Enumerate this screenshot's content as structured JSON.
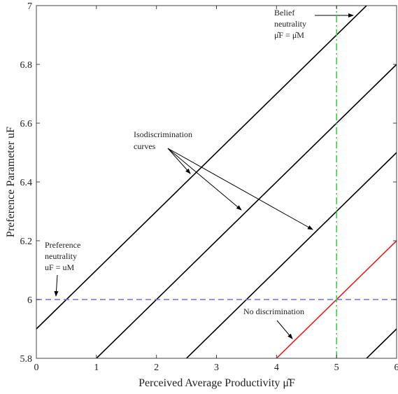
{
  "chart_data": {
    "type": "line",
    "xlabel": "Perceived Average Productivity μ̂F",
    "ylabel": "Preference Parameter uF",
    "xlim": [
      0,
      6
    ],
    "ylim": [
      5.8,
      7
    ],
    "xticks": [
      0,
      1,
      2,
      3,
      4,
      5,
      6
    ],
    "yticks": [
      5.8,
      6,
      6.2,
      6.4,
      6.6,
      6.8,
      7
    ],
    "grid": false,
    "series": [
      {
        "color": "#000000",
        "dash": "solid",
        "x": [
          0,
          5.5
        ],
        "values": [
          5.9,
          7
        ]
      },
      {
        "color": "#000000",
        "dash": "solid",
        "x": [
          1,
          6
        ],
        "values": [
          5.8,
          6.8
        ]
      },
      {
        "color": "#000000",
        "dash": "solid",
        "x": [
          2.5,
          6
        ],
        "values": [
          5.8,
          6.5
        ]
      },
      {
        "color": "#e8231f",
        "dash": "solid",
        "x": [
          4,
          6
        ],
        "values": [
          5.8,
          6.2
        ]
      },
      {
        "color": "#000000",
        "dash": "solid",
        "x": [
          5.5,
          6
        ],
        "values": [
          5.8,
          5.9
        ]
      },
      {
        "color": "#6f6ff5",
        "dash": "dashed",
        "x": [
          0,
          6
        ],
        "values": [
          6,
          6
        ]
      },
      {
        "color": "#3ed43e",
        "dash": "dashdot",
        "x": [
          5,
          5
        ],
        "values": [
          5.8,
          7
        ]
      }
    ],
    "annotations": [
      {
        "lines": [
          "Belief",
          "neutrality",
          "μ̂F = μ̂M"
        ]
      },
      {
        "lines": [
          "Isodiscrimination",
          "curves"
        ]
      },
      {
        "lines": [
          "Preference",
          "neutrality",
          "uF = uM"
        ]
      },
      {
        "lines": [
          "No discrimination"
        ]
      }
    ]
  }
}
